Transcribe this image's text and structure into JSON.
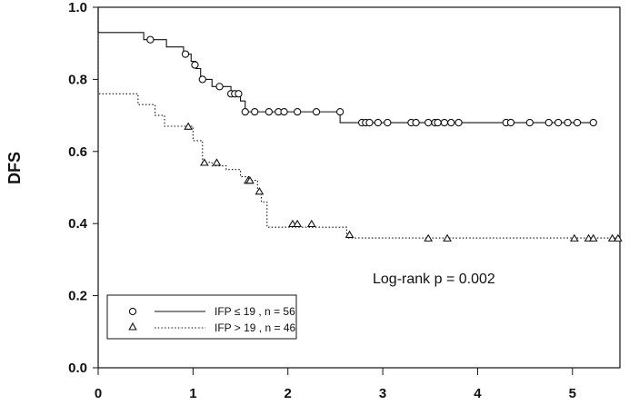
{
  "chart_data": {
    "type": "line",
    "title": "",
    "xlabel": "",
    "ylabel": "DFS",
    "xlim": [
      0,
      5.5
    ],
    "ylim": [
      0,
      1.0
    ],
    "x_ticks": [
      0,
      1,
      2,
      3,
      4,
      5
    ],
    "y_ticks": [
      0.0,
      0.2,
      0.4,
      0.6,
      0.8,
      1.0
    ],
    "y_tick_labels": [
      "0.0",
      "0.2",
      "0.4",
      "0.6",
      "0.8",
      "1.0"
    ],
    "grid": false,
    "annotation": "Log-rank p = 0.002",
    "legend": {
      "placement": "bottom-left",
      "entries": [
        {
          "marker": "○",
          "label": "IFP ≤ 19 , n = 56"
        },
        {
          "marker": "△",
          "label": "IFP > 19 , n = 46"
        }
      ]
    },
    "series": [
      {
        "style": "solid",
        "marker": "circle",
        "color": "#111111",
        "initial": [
          0,
          1.0
        ],
        "steps": [
          [
            0,
            0.93
          ],
          [
            0.48,
            0.91
          ],
          [
            0.72,
            0.89
          ],
          [
            0.9,
            0.87
          ],
          [
            0.98,
            0.85
          ],
          [
            1.03,
            0.83
          ],
          [
            1.08,
            0.8
          ],
          [
            1.2,
            0.78
          ],
          [
            1.4,
            0.76
          ],
          [
            1.5,
            0.74
          ],
          [
            1.55,
            0.71
          ],
          [
            2.55,
            0.68
          ],
          [
            5.25,
            0.68
          ]
        ],
        "censored": [
          [
            0.55,
            0.91
          ],
          [
            0.92,
            0.87
          ],
          [
            1.02,
            0.84
          ],
          [
            1.1,
            0.8
          ],
          [
            1.28,
            0.78
          ],
          [
            1.4,
            0.76
          ],
          [
            1.44,
            0.76
          ],
          [
            1.48,
            0.76
          ],
          [
            1.55,
            0.71
          ],
          [
            1.65,
            0.71
          ],
          [
            1.8,
            0.71
          ],
          [
            1.9,
            0.71
          ],
          [
            1.96,
            0.71
          ],
          [
            2.1,
            0.71
          ],
          [
            2.3,
            0.71
          ],
          [
            2.55,
            0.71
          ],
          [
            2.78,
            0.68
          ],
          [
            2.82,
            0.68
          ],
          [
            2.86,
            0.68
          ],
          [
            2.95,
            0.68
          ],
          [
            3.05,
            0.68
          ],
          [
            3.3,
            0.68
          ],
          [
            3.35,
            0.68
          ],
          [
            3.48,
            0.68
          ],
          [
            3.55,
            0.68
          ],
          [
            3.58,
            0.68
          ],
          [
            3.65,
            0.68
          ],
          [
            3.72,
            0.68
          ],
          [
            3.8,
            0.68
          ],
          [
            4.3,
            0.68
          ],
          [
            4.35,
            0.68
          ],
          [
            4.55,
            0.68
          ],
          [
            4.75,
            0.68
          ],
          [
            4.85,
            0.68
          ],
          [
            4.95,
            0.68
          ],
          [
            5.05,
            0.68
          ],
          [
            5.22,
            0.68
          ]
        ]
      },
      {
        "style": "dotted",
        "marker": "triangle",
        "color": "#111111",
        "initial": [
          0,
          1.0
        ],
        "steps": [
          [
            0,
            0.76
          ],
          [
            0.42,
            0.73
          ],
          [
            0.6,
            0.7
          ],
          [
            0.7,
            0.67
          ],
          [
            1.0,
            0.63
          ],
          [
            1.1,
            0.57
          ],
          [
            1.2,
            0.56
          ],
          [
            1.35,
            0.55
          ],
          [
            1.5,
            0.53
          ],
          [
            1.6,
            0.52
          ],
          [
            1.68,
            0.49
          ],
          [
            1.72,
            0.46
          ],
          [
            1.78,
            0.39
          ],
          [
            2.0,
            0.39
          ],
          [
            2.62,
            0.36
          ],
          [
            5.5,
            0.36
          ]
        ],
        "censored": [
          [
            0.95,
            0.67
          ],
          [
            1.12,
            0.57
          ],
          [
            1.25,
            0.57
          ],
          [
            1.58,
            0.52
          ],
          [
            1.6,
            0.52
          ],
          [
            1.7,
            0.49
          ],
          [
            2.05,
            0.4
          ],
          [
            2.1,
            0.4
          ],
          [
            2.25,
            0.4
          ],
          [
            2.65,
            0.37
          ],
          [
            3.48,
            0.36
          ],
          [
            3.68,
            0.36
          ],
          [
            5.02,
            0.36
          ],
          [
            5.17,
            0.36
          ],
          [
            5.22,
            0.36
          ],
          [
            5.42,
            0.36
          ],
          [
            5.48,
            0.36
          ]
        ]
      }
    ]
  }
}
